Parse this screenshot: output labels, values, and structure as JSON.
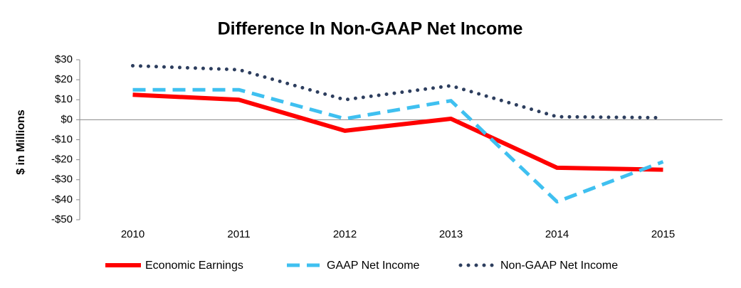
{
  "chart_data": {
    "type": "line",
    "title": "Difference In Non-GAAP Net Income",
    "y_label": "$ in Millions",
    "categories": [
      "2010",
      "2011",
      "2012",
      "2013",
      "2014",
      "2015"
    ],
    "series": [
      {
        "name": "Economic Earnings",
        "color": "#ff0000",
        "style": "solid",
        "values": [
          12.5,
          10,
          -5.5,
          0.5,
          -24,
          -25
        ]
      },
      {
        "name": "GAAP Net Income",
        "color": "#3fc0f0",
        "style": "dashed",
        "values": [
          15,
          15,
          0.5,
          9.5,
          -41,
          -21
        ]
      },
      {
        "name": "Non-GAAP Net Income",
        "color": "#2d3e5e",
        "style": "dotted",
        "values": [
          27,
          25,
          10,
          17,
          1.5,
          1
        ]
      }
    ],
    "ylim": [
      -50,
      30
    ],
    "yticks": [
      {
        "value": -50,
        "label": "-$50"
      },
      {
        "value": -40,
        "label": "-$40"
      },
      {
        "value": -30,
        "label": "-$30"
      },
      {
        "value": -20,
        "label": "-$20"
      },
      {
        "value": -10,
        "label": "-$10"
      },
      {
        "value": 0,
        "label": "$0"
      },
      {
        "value": 10,
        "label": "$10"
      },
      {
        "value": 20,
        "label": "$20"
      },
      {
        "value": 30,
        "label": "$30"
      }
    ],
    "legend": "bottom"
  }
}
